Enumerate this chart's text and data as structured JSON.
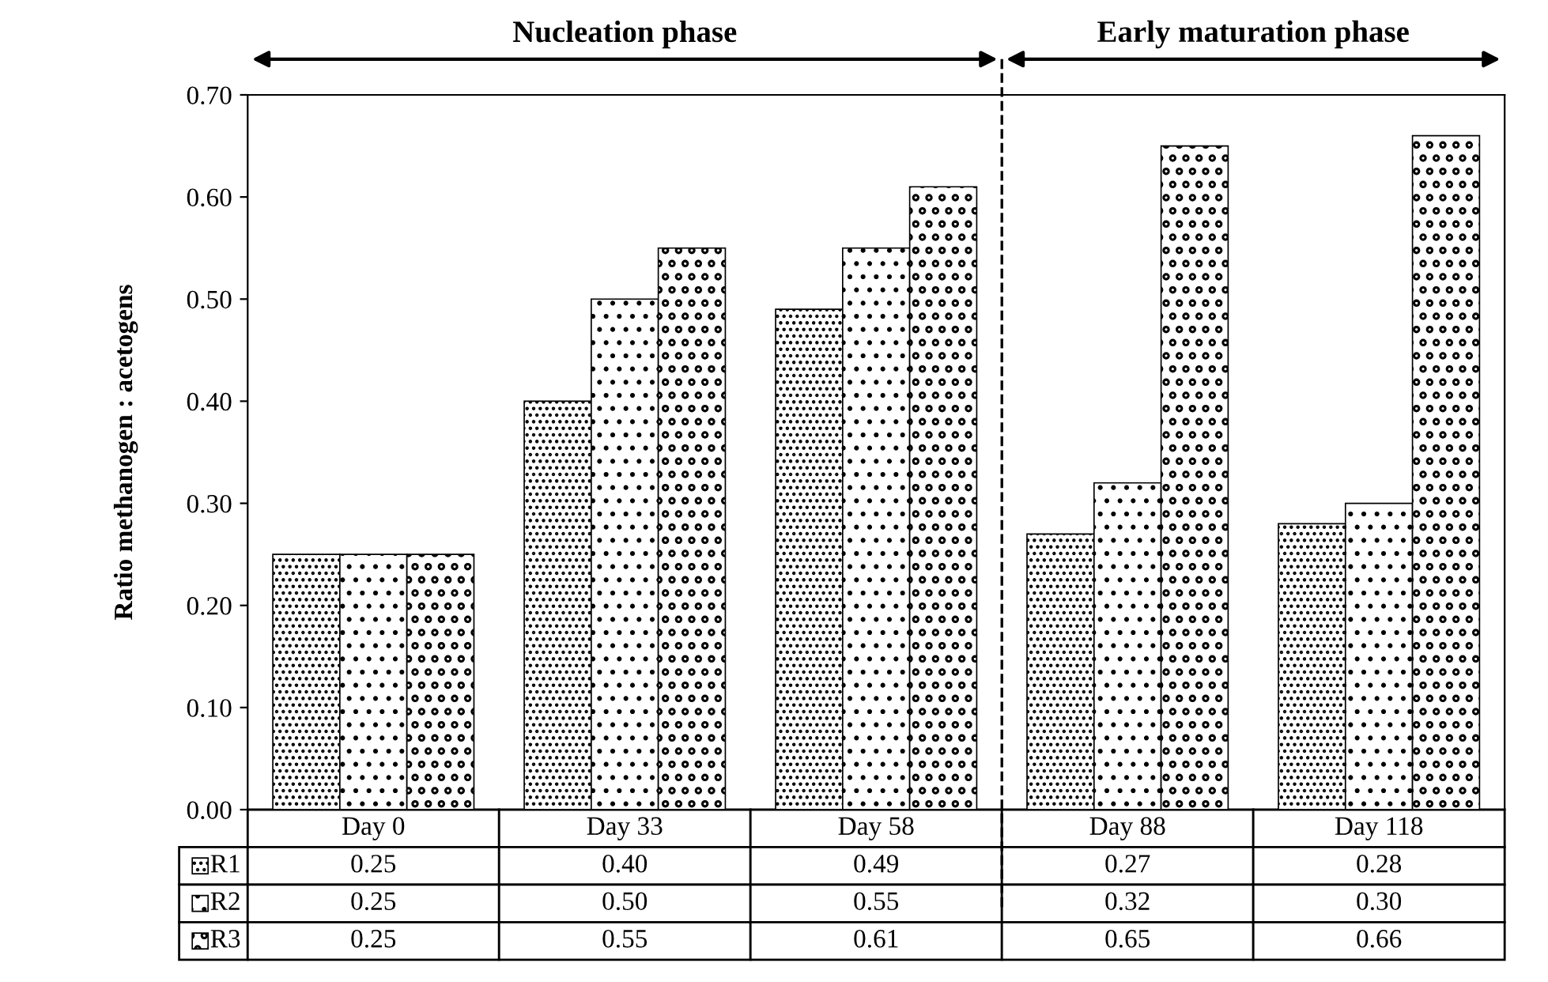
{
  "chart_data": {
    "type": "bar",
    "ylabel": "Ratio methanogen : acetogens",
    "categories": [
      "Day 0",
      "Day 33",
      "Day 58",
      "Day 88",
      "Day 118"
    ],
    "series": [
      {
        "name": "R1",
        "color": "#000000",
        "values": [
          0.25,
          0.4,
          0.49,
          0.27,
          0.28
        ],
        "value_labels": [
          "0.25",
          "0.40",
          "0.49",
          "0.27",
          "0.28"
        ]
      },
      {
        "name": "R2",
        "color": "#000000",
        "values": [
          0.25,
          0.5,
          0.55,
          0.32,
          0.3
        ],
        "value_labels": [
          "0.25",
          "0.50",
          "0.55",
          "0.32",
          "0.30"
        ]
      },
      {
        "name": "R3",
        "color": "#000000",
        "values": [
          0.25,
          0.55,
          0.61,
          0.65,
          0.66
        ],
        "value_labels": [
          "0.25",
          "0.55",
          "0.61",
          "0.65",
          "0.66"
        ]
      }
    ],
    "ylim": [
      0,
      0.7
    ],
    "yticks": [
      {
        "value": 0,
        "label": "0.00"
      },
      {
        "value": 0.1,
        "label": "0.10"
      },
      {
        "value": 0.2,
        "label": "0.20"
      },
      {
        "value": 0.3,
        "label": "0.30"
      },
      {
        "value": 0.4,
        "label": "0.40"
      },
      {
        "value": 0.5,
        "label": "0.50"
      },
      {
        "value": 0.6,
        "label": "0.60"
      },
      {
        "value": 0.7,
        "label": "0.70"
      }
    ],
    "annotations": [
      "Nucleation phase",
      "Early maturation phase"
    ],
    "grid": false,
    "legend": "bottom left"
  }
}
